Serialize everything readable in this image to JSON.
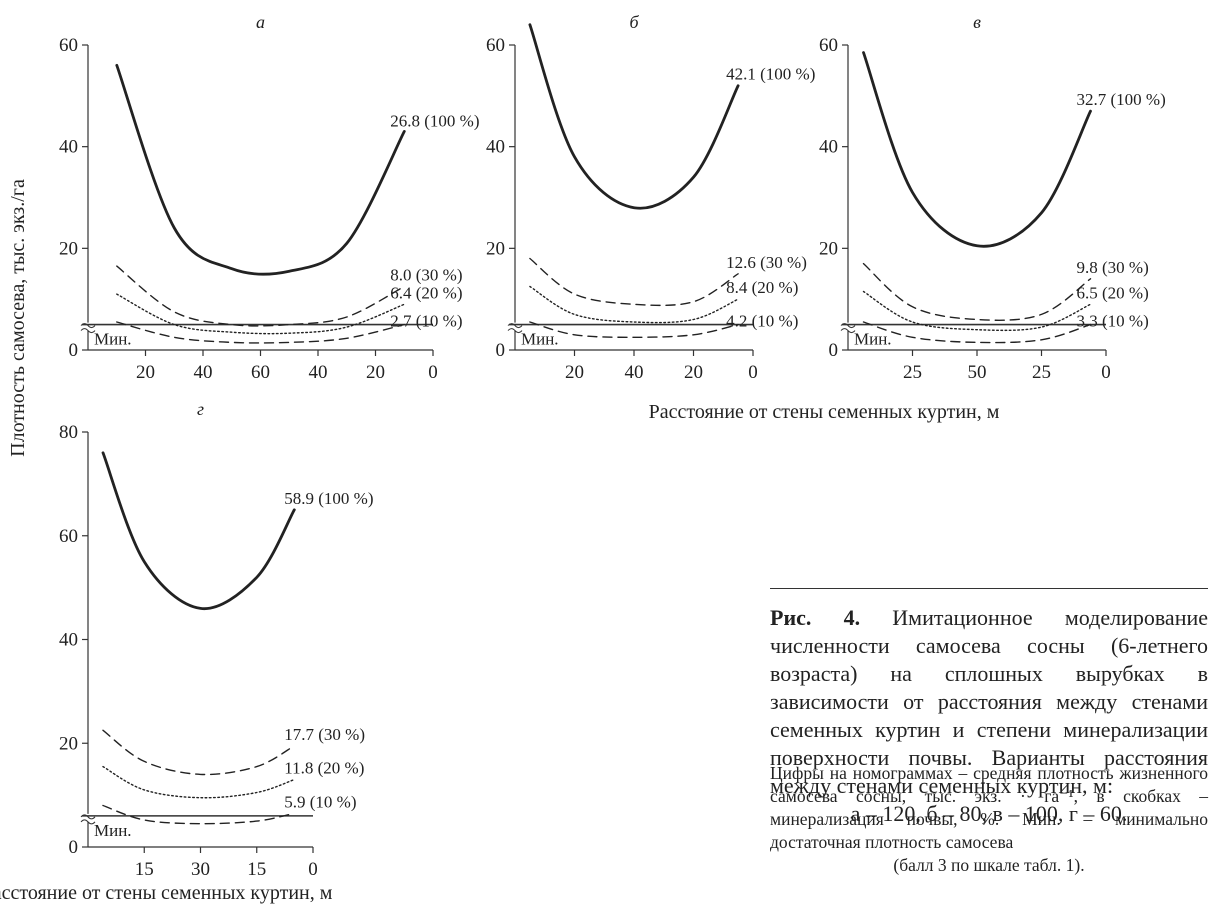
{
  "figure": {
    "y_axis_title": "Плотность самосева, тыс. экз./га",
    "x_axis_title_top": "Расстояние от стены семенных куртин, м",
    "x_axis_title_bottom": "Расстояние от стены семенных куртин, м"
  },
  "caption": {
    "fig_label": "Рис. 4.",
    "main_text": "Имитационное моделирование численности самосева сосны (6-летнего возраста) на сплошных вырубках в зависимости от расстояния между стенами семенных куртин и степени минерализации поверхности почвы. Варианты расстояния между стенами семенных куртин, м:",
    "variants": "а – 120, б – 80, в – 100, г – 60.",
    "note": "Цифры на номограммах – средняя плотность жизненного самосева сосны, тыс. экз. · га⁻¹, в скобках – минерализация почвы, %. Мин. – минимально достаточная плотность самосева",
    "note_last": "(балл 3 по шкале табл. 1)."
  },
  "chart_data": [
    {
      "type": "line",
      "panel": "а",
      "xlabel": "",
      "ylabel": "Плотность самосева, тыс. экз./га",
      "ylim": [
        0,
        60
      ],
      "yticks": [
        "0",
        "20",
        "40",
        "60"
      ],
      "x_distance_m": [
        10,
        30,
        50,
        70,
        90,
        110
      ],
      "xticks": [
        "20",
        "40",
        "60",
        "40",
        "20",
        "0"
      ],
      "min_label": "Мин.",
      "min_line": 5,
      "series": [
        {
          "label": "26.8 (100 %)",
          "style": "solid",
          "values": [
            56,
            24,
            16,
            15.5,
            21,
            43
          ]
        },
        {
          "label": "8.0 (30 %)",
          "style": "dashed",
          "values": [
            16.5,
            7.5,
            5.0,
            5.0,
            6.5,
            12.5
          ]
        },
        {
          "label": "6.4 (20 %)",
          "style": "dotted",
          "values": [
            11,
            5.0,
            3.5,
            3.3,
            4.5,
            9.0
          ]
        },
        {
          "label": "2.7 (10 %)",
          "style": "dashed",
          "values": [
            5.5,
            2.5,
            1.5,
            1.5,
            2.3,
            5.0
          ]
        }
      ]
    },
    {
      "type": "line",
      "panel": "б",
      "xlabel": "Расстояние от стены семенных куртин, м",
      "ylabel": "",
      "ylim": [
        0,
        60
      ],
      "yticks": [
        "0",
        "20",
        "40",
        "60"
      ],
      "x_distance_m": [
        5,
        20,
        40,
        60,
        75
      ],
      "xticks": [
        "20",
        "40",
        "20",
        "0"
      ],
      "min_label": "Мин.",
      "min_line": 5,
      "series": [
        {
          "label": "42.1 (100 %)",
          "style": "solid",
          "values": [
            64,
            38,
            28,
            34,
            52
          ]
        },
        {
          "label": "12.6 (30 %)",
          "style": "dashed",
          "values": [
            18,
            11,
            9,
            9.5,
            15
          ]
        },
        {
          "label": "8.4 (20 %)",
          "style": "dotted",
          "values": [
            12.5,
            7,
            5.5,
            6,
            10
          ]
        },
        {
          "label": "4.2 (10 %)",
          "style": "dashed",
          "values": [
            5.5,
            3,
            2.5,
            3,
            5
          ]
        }
      ]
    },
    {
      "type": "line",
      "panel": "в",
      "xlabel": "",
      "ylabel": "",
      "ylim": [
        0,
        60
      ],
      "yticks": [
        "0",
        "20",
        "40",
        "60"
      ],
      "x_distance_m": [
        6,
        25,
        50,
        75,
        94
      ],
      "xticks": [
        "25",
        "50",
        "25",
        "0"
      ],
      "min_label": "Мин.",
      "min_line": 5,
      "series": [
        {
          "label": "32.7 (100 %)",
          "style": "solid",
          "values": [
            58.5,
            31,
            20.5,
            27,
            47
          ]
        },
        {
          "label": "9.8 (30 %)",
          "style": "dashed",
          "values": [
            17,
            8.5,
            6,
            7,
            14
          ]
        },
        {
          "label": "6.5 (20 %)",
          "style": "dotted",
          "values": [
            11.5,
            5.5,
            4,
            4.5,
            9
          ]
        },
        {
          "label": "3.3 (10 %)",
          "style": "dashed",
          "values": [
            5.5,
            2.5,
            1.5,
            2,
            5
          ]
        }
      ]
    },
    {
      "type": "line",
      "panel": "г",
      "xlabel": "Расстояние от стены семенных куртин, м",
      "ylabel": "",
      "ylim": [
        0,
        80
      ],
      "yticks": [
        "0",
        "20",
        "40",
        "60",
        "80"
      ],
      "x_distance_m": [
        4,
        15,
        30,
        45,
        55
      ],
      "xticks": [
        "15",
        "30",
        "15",
        "0"
      ],
      "min_label": "Мин.",
      "min_line": 6,
      "series": [
        {
          "label": "58.9 (100 %)",
          "style": "solid",
          "values": [
            76,
            55,
            46,
            52,
            65
          ]
        },
        {
          "label": "17.7 (30 %)",
          "style": "dashed",
          "values": [
            22.5,
            16.5,
            14,
            15.5,
            19.5
          ]
        },
        {
          "label": "11.8 (20 %)",
          "style": "dotted",
          "values": [
            15.5,
            11,
            9.5,
            10.5,
            13
          ]
        },
        {
          "label": "5.9 (10 %)",
          "style": "dashed",
          "values": [
            8,
            5.2,
            4.5,
            5,
            6.5
          ]
        }
      ]
    }
  ]
}
